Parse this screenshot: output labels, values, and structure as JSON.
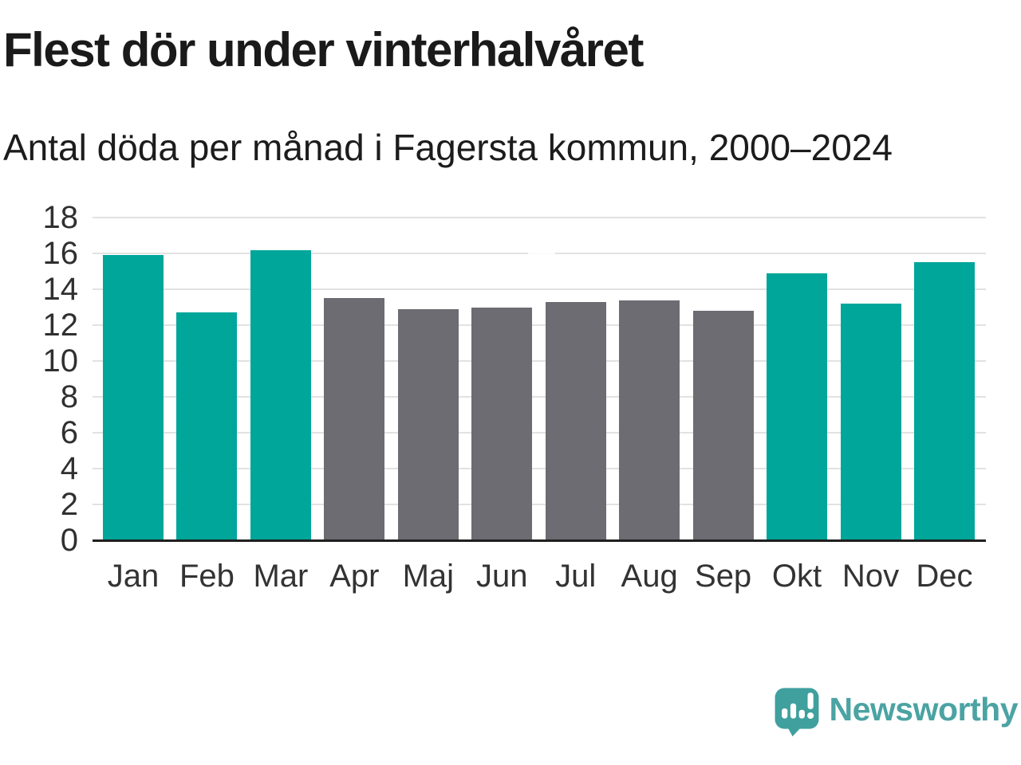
{
  "header": {
    "title": "Flest dör under vinterhalvåret",
    "subtitle": "Antal döda per månad i Fagersta kommun, 2000–2024"
  },
  "chart_data": {
    "type": "bar",
    "title": "Flest dör under vinterhalvåret",
    "subtitle": "Antal döda per månad i Fagersta kommun, 2000–2024",
    "categories": [
      "Jan",
      "Feb",
      "Mar",
      "Apr",
      "Maj",
      "Jun",
      "Jul",
      "Aug",
      "Sep",
      "Okt",
      "Nov",
      "Dec"
    ],
    "values": [
      15.9,
      12.7,
      16.2,
      13.5,
      12.9,
      13.0,
      13.3,
      13.4,
      12.8,
      14.9,
      13.2,
      15.5
    ],
    "highlighted": [
      true,
      true,
      true,
      false,
      false,
      false,
      false,
      false,
      false,
      true,
      true,
      true
    ],
    "highlight_meaning": "winter half-year months",
    "yticks": [
      0,
      2,
      4,
      6,
      8,
      10,
      12,
      14,
      16,
      18
    ],
    "ylim": [
      0,
      18
    ],
    "xlabel": "",
    "ylabel": "",
    "grid": true,
    "legend": "none"
  },
  "colors": {
    "background": "#ffffff",
    "bar_highlight": "#00A69A",
    "bar_base": "#6C6C72",
    "gridline": "#E2E2E2",
    "axis_line": "#1F1F1F",
    "logo_mark": "#40A09E",
    "logo_text": "#4BA3A3"
  },
  "footer": {
    "brand": "Newsworthy",
    "logo_icon": "bar-chart-speech-bubble"
  }
}
